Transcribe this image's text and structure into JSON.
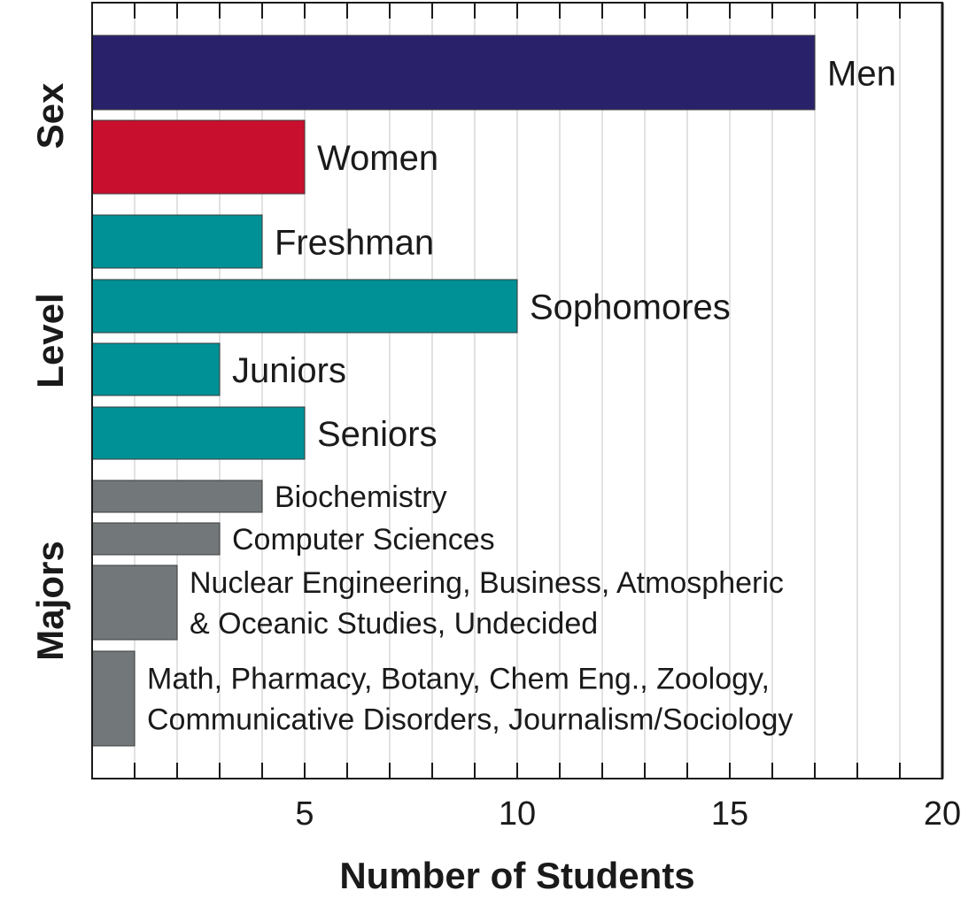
{
  "chart_data": {
    "type": "bar",
    "orientation": "horizontal",
    "xlabel": "Number of Students",
    "xlim": [
      0,
      20
    ],
    "x_ticks": [
      "5",
      "10",
      "15",
      "20"
    ],
    "grid": "vertical",
    "groups": [
      {
        "name": "Sex",
        "bars": [
          0,
          1
        ]
      },
      {
        "name": "Level",
        "bars": [
          2,
          3,
          4,
          5
        ]
      },
      {
        "name": "Majors",
        "bars": [
          6,
          7,
          8,
          9
        ]
      }
    ],
    "bars": [
      {
        "label_lines": [
          "Men"
        ],
        "value": 17,
        "color": "#29226b"
      },
      {
        "label_lines": [
          "Women"
        ],
        "value": 5,
        "color": "#c8102e"
      },
      {
        "label_lines": [
          "Freshman"
        ],
        "value": 4,
        "color": "#009196"
      },
      {
        "label_lines": [
          "Sophomores"
        ],
        "value": 10,
        "color": "#009196"
      },
      {
        "label_lines": [
          "Juniors"
        ],
        "value": 3,
        "color": "#009196"
      },
      {
        "label_lines": [
          "Seniors"
        ],
        "value": 5,
        "color": "#009196"
      },
      {
        "label_lines": [
          "Biochemistry"
        ],
        "value": 4,
        "color": "#727879"
      },
      {
        "label_lines": [
          "Computer Sciences"
        ],
        "value": 3,
        "color": "#727879"
      },
      {
        "label_lines": [
          "Nuclear Engineering, Business, Atmospheric",
          "& Oceanic Studies, Undecided"
        ],
        "value": 2,
        "color": "#727879"
      },
      {
        "label_lines": [
          "Math, Pharmacy, Botany, Chem Eng., Zoology,",
          "Communicative Disorders, Journalism/Sociology"
        ],
        "value": 1,
        "color": "#727879"
      }
    ]
  }
}
